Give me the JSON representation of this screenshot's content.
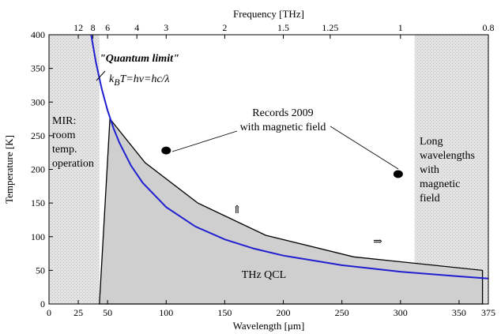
{
  "chart_data": {
    "type": "area",
    "xlabel": "Wavelength [μm]",
    "ylabel": "Temperature [K]",
    "top_xlabel": "Frequency [THz]",
    "xlim": [
      0,
      375
    ],
    "ylim": [
      0,
      400
    ],
    "x_ticks": [
      0,
      25,
      50,
      100,
      150,
      200,
      250,
      300,
      350,
      375
    ],
    "y_ticks": [
      0,
      50,
      100,
      150,
      200,
      250,
      300,
      350,
      400
    ],
    "top_ticks": [
      {
        "label": "12",
        "wavelength": 25
      },
      {
        "label": "8",
        "wavelength": 37.5
      },
      {
        "label": "6",
        "wavelength": 50
      },
      {
        "label": "4",
        "wavelength": 75
      },
      {
        "label": "3",
        "wavelength": 100
      },
      {
        "label": "2",
        "wavelength": 150
      },
      {
        "label": "1.5",
        "wavelength": 200
      },
      {
        "label": "1.25",
        "wavelength": 240
      },
      {
        "label": "1",
        "wavelength": 300
      },
      {
        "label": "0.8",
        "wavelength": 375
      }
    ],
    "series": [
      {
        "name": "THz QCL",
        "color": "#000000",
        "fill": "#cfcfcf",
        "x": [
          43,
          52,
          82,
          127,
          185,
          260,
          370,
          370
        ],
        "y": [
          0,
          275,
          210,
          150,
          102,
          70,
          50,
          0
        ]
      },
      {
        "name": "",
        "color": "#1f1fd0",
        "formula": "T = 14388 / wavelength_um",
        "x": [
          36,
          40,
          45,
          50,
          55,
          60,
          70,
          80,
          100,
          125,
          150,
          175,
          200,
          250,
          300,
          350,
          380
        ],
        "y": [
          399.7,
          359.7,
          319.7,
          287.8,
          261.6,
          239.8,
          205.5,
          179.9,
          143.9,
          115.1,
          95.9,
          82.2,
          71.9,
          57.6,
          48.0,
          41.1,
          37.9
        ]
      }
    ],
    "points": [
      {
        "x": 100,
        "y": 228
      },
      {
        "x": 298,
        "y": 193
      }
    ],
    "regions": [
      {
        "label": "MIR: room temp. operation",
        "x0": 0,
        "x1": 43
      },
      {
        "label": "Long wavelengths with magnetic field",
        "x0": 312,
        "x1": 375
      }
    ],
    "annotations": {
      "quantum_limit": "\"Quantum limit\"",
      "formula": "kBT=hν=hc/λ",
      "records": [
        "Records 2009",
        "with magnetic field"
      ],
      "mir": [
        "MIR:",
        "room",
        "temp.",
        "operation"
      ],
      "long_wl": [
        "Long",
        "wavelengths",
        "with",
        "magnetic",
        "field"
      ],
      "qcl": "THz QCL",
      "up_arrow": "⇑",
      "right_arrow": "⇒"
    },
    "colors": {
      "curve": "#1f1fd0",
      "qcl_fill": "#cfcfcf",
      "hatch_light": "#e8e8e8",
      "hatch_dark": "#cfcfcf"
    },
    "grid": false
  }
}
